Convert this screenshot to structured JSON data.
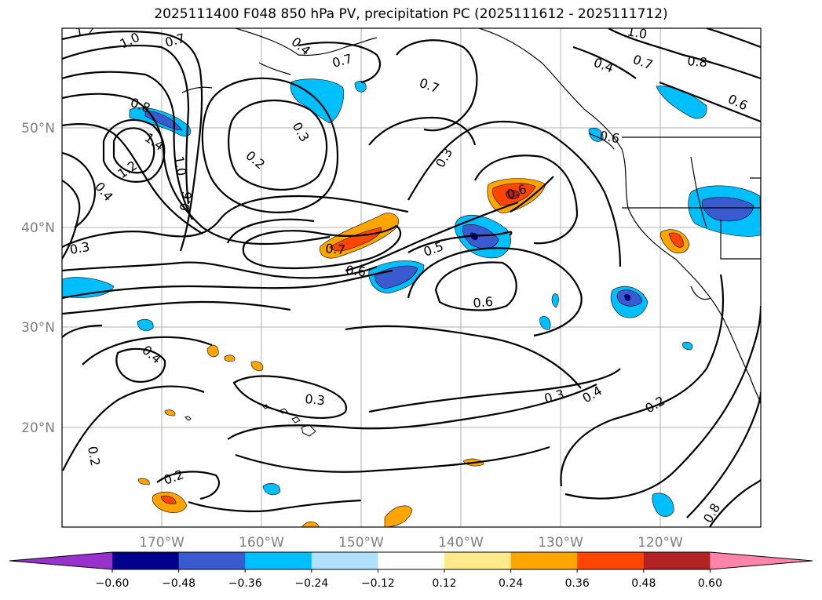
{
  "title": "2025111400 F048 850 hPa PV, precipitation PC (2025111612 - 2025111712)",
  "map": {
    "lat_ticks": [
      "50°N",
      "40°N",
      "30°N",
      "20°N"
    ],
    "lon_ticks": [
      "170°W",
      "160°W",
      "150°W",
      "140°W",
      "130°W",
      "120°W"
    ],
    "lat_range": [
      10,
      60
    ],
    "lon_range": [
      -180,
      -110
    ],
    "contour_labels": [
      "1.2",
      "1.0",
      "0.7",
      "0.8",
      "1.4",
      "1.0",
      "1.2",
      "0.4",
      "0.6",
      "0.3",
      "0.2",
      "0.3",
      "0.7",
      "0.7",
      "0.3",
      "0.6",
      "0.5",
      "0.7",
      "0.6",
      "0.6",
      "0.4",
      "0.3",
      "0.4",
      "0.2",
      "0.2",
      "0.2",
      "0.3",
      "0.4",
      "1.0",
      "0.7",
      "0.8",
      "0.4",
      "0.6",
      "0.6",
      "0.8"
    ]
  },
  "colorbar": {
    "ticks": [
      "−0.60",
      "−0.48",
      "−0.36",
      "−0.24",
      "−0.12",
      "0.12",
      "0.24",
      "0.36",
      "0.48",
      "0.60"
    ],
    "colors": [
      "#9932cc",
      "#00008b",
      "#3a5bd0",
      "#00bfff",
      "#b0e0ff",
      "#ffffff",
      "#ffe98a",
      "#ffa500",
      "#ff4500",
      "#b22222",
      "#ff85a8"
    ]
  }
}
